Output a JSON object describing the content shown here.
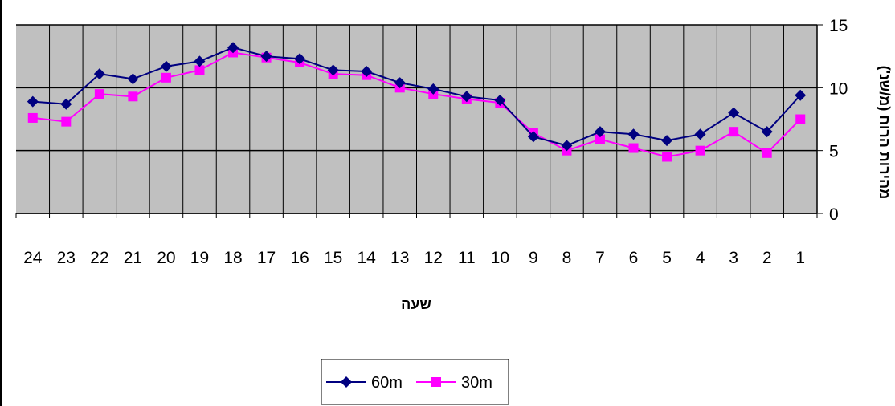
{
  "chart_data": {
    "type": "line",
    "xlabel": "שעה",
    "ylabel": "מהירות הרוח (מ/שנ')",
    "x_order": "reversed",
    "x": [
      1,
      2,
      3,
      4,
      5,
      6,
      7,
      8,
      9,
      10,
      11,
      12,
      13,
      14,
      15,
      16,
      17,
      18,
      19,
      20,
      21,
      22,
      23,
      24
    ],
    "x_tick_labels": [
      "1",
      "2",
      "3",
      "4",
      "5",
      "6",
      "7",
      "8",
      "9",
      "10",
      "11",
      "12",
      "13",
      "14",
      "15",
      "16",
      "17",
      "18",
      "19",
      "20",
      "21",
      "22",
      "23",
      "24"
    ],
    "y_ticks": [
      "0",
      "5",
      "10",
      "15"
    ],
    "ylim": [
      0,
      15
    ],
    "y_axis_position": "right",
    "grid": "major-x-and-y",
    "plot_background": "#c0c0c0",
    "legend_position": "bottom",
    "series": [
      {
        "name": "60m",
        "color": "#000080",
        "marker": "diamond",
        "values": [
          9.4,
          6.5,
          8.0,
          6.3,
          5.8,
          6.3,
          6.5,
          5.4,
          6.1,
          9.0,
          9.3,
          9.9,
          10.4,
          11.3,
          11.4,
          12.3,
          12.5,
          13.2,
          12.1,
          11.7,
          10.7,
          11.1,
          8.7,
          8.9
        ]
      },
      {
        "name": "30m",
        "color": "#ff00ff",
        "marker": "square",
        "values": [
          7.5,
          4.8,
          6.5,
          5.0,
          4.5,
          5.2,
          5.9,
          5.0,
          6.4,
          8.8,
          9.1,
          9.5,
          10.0,
          11.0,
          11.1,
          12.0,
          12.4,
          12.8,
          11.4,
          10.8,
          9.3,
          9.5,
          7.3,
          7.6
        ]
      }
    ]
  }
}
